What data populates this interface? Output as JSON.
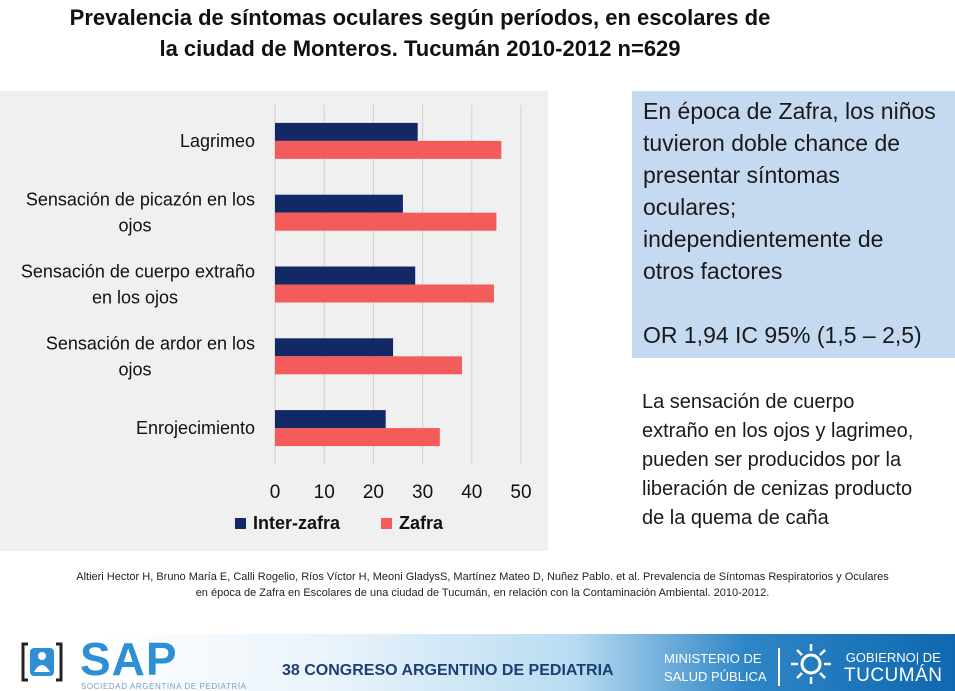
{
  "title": {
    "line1": "Prevalencia de síntomas oculares según períodos, en escolares de",
    "line2": "la ciudad de Monteros. Tucumán 2010-2012  n=629"
  },
  "chart_data": {
    "type": "bar",
    "orientation": "horizontal",
    "categories": [
      [
        "Lagrimeo"
      ],
      [
        "Sensación de picazón en los",
        "ojos"
      ],
      [
        "Sensación de cuerpo extraño",
        "en los ojos"
      ],
      [
        "Sensación de ardor  en los",
        "ojos"
      ],
      [
        "Enrojecimiento"
      ]
    ],
    "series": [
      {
        "name": "Inter-zafra",
        "color": "#132966",
        "values": [
          29,
          26,
          28.5,
          24,
          22.5
        ]
      },
      {
        "name": "Zafra",
        "color": "#f45b5b",
        "values": [
          46,
          45,
          44.5,
          38,
          33.5
        ]
      }
    ],
    "xlim": [
      0,
      50
    ],
    "xticks": [
      0,
      10,
      20,
      30,
      40,
      50
    ],
    "grid": true,
    "legend": "bottom"
  },
  "note_box": {
    "lines": [
      "En época de Zafra, los niños",
      "tuvieron doble chance de",
      "presentar síntomas",
      "oculares;",
      "independientemente de",
      "otros factores"
    ],
    "or_text": "OR 1,94   IC 95% (1,5 – 2,5)"
  },
  "note2": {
    "lines": [
      "La sensación de cuerpo",
      "extraño en los ojos y lagrimeo,",
      "pueden ser producidos por la",
      "liberación de cenizas producto",
      "de la quema de caña"
    ]
  },
  "citation": {
    "line1": "Altieri Hector H, Bruno María E, Calli Rogelio, Ríos Víctor H, Meoni GladysS, Martínez Mateo D, Nuñez Pablo. et al. Prevalencia de Síntomas Respiratorios y Oculares",
    "line2": "en época de Zafra en Escolares de una ciudad de Tucumán, en relación con la Contaminación Ambiental. 2010-2012."
  },
  "footer": {
    "sap": "SAP",
    "sap_sub": "SOCIEDAD ARGENTINA DE PEDIATRÍA",
    "congress": "38 CONGRESO ARGENTINO DE PEDIATRIA",
    "ministry_l1": "MINISTERIO DE",
    "ministry_l2": "SALUD PÚBLICA",
    "gob_l1": "GOBIERNO| DE",
    "gob_l2": "TUCUMÁN"
  }
}
